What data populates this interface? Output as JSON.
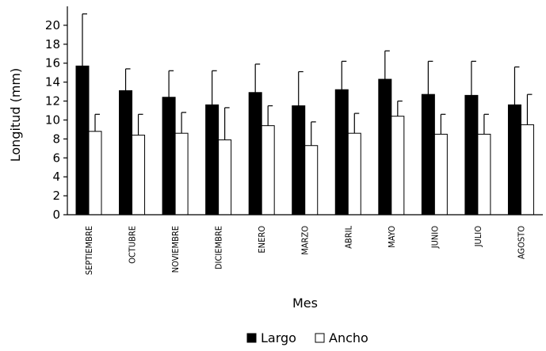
{
  "chart_data": {
    "type": "bar",
    "xlabel": "Mes",
    "ylabel": "Longitud (mm)",
    "ylim": [
      0,
      22
    ],
    "yticks": [
      0,
      2,
      4,
      6,
      8,
      10,
      12,
      14,
      16,
      18,
      20
    ],
    "categories": [
      "SEPTIEMBRE",
      "OCTUBRE",
      "NOVIEMBRE",
      "DICIEMBRE",
      "ENERO",
      "MARZO",
      "ABRIL",
      "MAYO",
      "JUNIO",
      "JULIO",
      "AGOSTO"
    ],
    "series": [
      {
        "name": "Largo",
        "color": "#000000",
        "values": [
          15.7,
          13.1,
          12.4,
          11.6,
          12.9,
          11.5,
          13.2,
          14.3,
          12.7,
          12.6,
          11.6
        ],
        "error_upper": [
          21.2,
          15.4,
          15.2,
          15.2,
          15.9,
          15.1,
          16.2,
          17.3,
          16.2,
          16.2,
          15.6
        ]
      },
      {
        "name": "Ancho",
        "color": "#ffffff",
        "values": [
          8.8,
          8.4,
          8.6,
          7.9,
          9.4,
          7.3,
          8.6,
          10.4,
          8.5,
          8.5,
          9.5
        ],
        "error_upper": [
          10.6,
          10.6,
          10.8,
          11.3,
          11.5,
          9.8,
          10.7,
          12.0,
          10.6,
          10.6,
          12.7
        ]
      }
    ],
    "legend_position": "bottom",
    "grid": false
  }
}
